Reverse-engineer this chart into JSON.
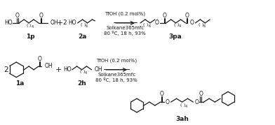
{
  "background_color": "#ffffff",
  "figsize": [
    3.92,
    1.79
  ],
  "dpi": 100,
  "r1_cond1": "TfOH (0.2 mol%)",
  "r1_cond2": "Solkane365mfc",
  "r1_cond3": "80 ºC, 18 h, 93%",
  "r2_cond1": "TfOH (0.2 mol%)",
  "r2_cond2": "Solkane365mfc",
  "r2_cond3": "80 ºC, 18 h, 93%",
  "lc": "#1a1a1a",
  "tc": "#1a1a1a",
  "fs": 5.5,
  "fl": 6.5,
  "fc": 5.0
}
